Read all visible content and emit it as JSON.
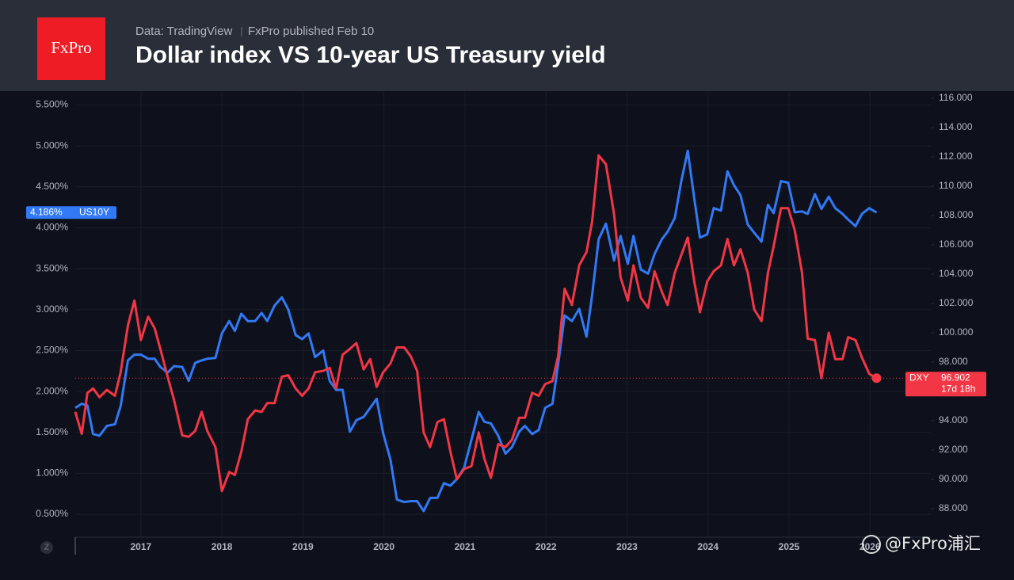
{
  "header": {
    "logo": "FxPro",
    "source": "Data: TradingView",
    "published": "FxPro published Feb 10"
  },
  "ui": {
    "scale_button": "Z"
  },
  "watermark": "@FxPro浦汇",
  "chart_data": {
    "type": "line",
    "title": "Dollar index VS 10-year US Treasury yield",
    "x": [
      2016.19,
      2016.27,
      2016.34,
      2016.41,
      2016.49,
      2016.58,
      2016.68,
      2016.75,
      2016.84,
      2016.92,
      2017.0,
      2017.09,
      2017.17,
      2017.24,
      2017.33,
      2017.41,
      2017.51,
      2017.59,
      2017.67,
      2017.75,
      2017.82,
      2017.92,
      2018.0,
      2018.09,
      2018.16,
      2018.24,
      2018.32,
      2018.41,
      2018.49,
      2018.56,
      2018.65,
      2018.74,
      2018.82,
      2018.91,
      2018.99,
      2019.07,
      2019.15,
      2019.25,
      2019.33,
      2019.41,
      2019.49,
      2019.58,
      2019.66,
      2019.75,
      2019.83,
      2019.91,
      2019.99,
      2020.08,
      2020.16,
      2020.25,
      2020.33,
      2020.41,
      2020.49,
      2020.57,
      2020.66,
      2020.74,
      2020.82,
      2020.9,
      2020.99,
      2021.08,
      2021.17,
      2021.24,
      2021.32,
      2021.41,
      2021.5,
      2021.58,
      2021.67,
      2021.74,
      2021.83,
      2021.91,
      2021.99,
      2022.08,
      2022.15,
      2022.23,
      2022.32,
      2022.41,
      2022.5,
      2022.57,
      2022.65,
      2022.74,
      2022.84,
      2022.92,
      2023.01,
      2023.08,
      2023.17,
      2023.26,
      2023.34,
      2023.43,
      2023.5,
      2023.59,
      2023.67,
      2023.75,
      2023.83,
      2023.9,
      2023.99,
      2024.07,
      2024.16,
      2024.24,
      2024.32,
      2024.4,
      2024.49,
      2024.57,
      2024.66,
      2024.74,
      2024.81,
      2024.9,
      2024.99,
      2025.07,
      2025.16,
      2025.23,
      2025.32,
      2025.4,
      2025.49,
      2025.57,
      2025.66,
      2025.73,
      2025.82,
      2025.9,
      2025.99,
      2026.08
    ],
    "xlim": [
      2016.19,
      2026.75
    ],
    "xticks": [
      2017,
      2018,
      2019,
      2020,
      2021,
      2022,
      2023,
      2024,
      2025,
      2026
    ],
    "ylim": [
      0.22,
      5.65
    ],
    "yticks": [
      {
        "value": 0.5,
        "label": "0.500%"
      },
      {
        "value": 1.0,
        "label": "1.000%"
      },
      {
        "value": 1.5,
        "label": "1.500%"
      },
      {
        "value": 2.0,
        "label": "2.000%"
      },
      {
        "value": 2.5,
        "label": "2.500%"
      },
      {
        "value": 3.0,
        "label": "3.000%"
      },
      {
        "value": 3.5,
        "label": "3.500%"
      },
      {
        "value": 4.0,
        "label": "4.000%"
      },
      {
        "value": 4.5,
        "label": "4.500%"
      },
      {
        "value": 5.0,
        "label": "5.000%"
      },
      {
        "value": 5.5,
        "label": "5.500%"
      }
    ],
    "y2lim": [
      86.05,
      116.38
    ],
    "y2ticks": [
      {
        "value": 88,
        "label": "88.000"
      },
      {
        "value": 90,
        "label": "90.000"
      },
      {
        "value": 92,
        "label": "92.000"
      },
      {
        "value": 94,
        "label": "94.000"
      },
      {
        "value": 96,
        "label": "96.000"
      },
      {
        "value": 98,
        "label": "98.000"
      },
      {
        "value": 100,
        "label": "100.000"
      },
      {
        "value": 102,
        "label": "102.000"
      },
      {
        "value": 104,
        "label": "104.000"
      },
      {
        "value": 106,
        "label": "106.000"
      },
      {
        "value": 108,
        "label": "108.000"
      },
      {
        "value": 110,
        "label": "110.000"
      },
      {
        "value": 112,
        "label": "112.000"
      },
      {
        "value": 114,
        "label": "114.000"
      },
      {
        "value": 116,
        "label": "116.000"
      }
    ],
    "grid": true,
    "series": [
      {
        "name": "US10Y",
        "color": "#3179f5",
        "price_label": "4.186%",
        "values": [
          1.8,
          1.85,
          1.83,
          1.48,
          1.46,
          1.58,
          1.6,
          1.82,
          2.38,
          2.45,
          2.45,
          2.4,
          2.4,
          2.3,
          2.23,
          2.31,
          2.3,
          2.13,
          2.35,
          2.38,
          2.4,
          2.41,
          2.71,
          2.86,
          2.74,
          2.95,
          2.86,
          2.86,
          2.96,
          2.86,
          3.05,
          3.15,
          3.0,
          2.69,
          2.64,
          2.71,
          2.42,
          2.5,
          2.13,
          2.02,
          2.02,
          1.51,
          1.65,
          1.69,
          1.8,
          1.91,
          1.49,
          1.17,
          0.68,
          0.65,
          0.66,
          0.66,
          0.54,
          0.7,
          0.7,
          0.88,
          0.85,
          0.93,
          1.07,
          1.41,
          1.75,
          1.63,
          1.61,
          1.46,
          1.24,
          1.32,
          1.51,
          1.58,
          1.48,
          1.53,
          1.8,
          1.85,
          2.33,
          2.93,
          2.86,
          3.01,
          2.67,
          3.18,
          3.86,
          4.05,
          3.6,
          3.9,
          3.56,
          3.9,
          3.49,
          3.44,
          3.68,
          3.86,
          3.95,
          4.12,
          4.57,
          4.94,
          4.36,
          3.88,
          3.92,
          4.24,
          4.21,
          4.69,
          4.52,
          4.4,
          4.04,
          3.94,
          3.83,
          4.28,
          4.18,
          4.57,
          4.55,
          4.19,
          4.2,
          4.17,
          4.41,
          4.23,
          4.38,
          4.24,
          4.17,
          4.1,
          4.02,
          4.17,
          4.24,
          4.186
        ]
      },
      {
        "name": "DXY",
        "color": "#f23645",
        "axis": "y2",
        "countdown": "17d 18h",
        "values": [
          94.6,
          93.1,
          95.9,
          96.2,
          95.6,
          96.1,
          95.7,
          97.3,
          100.5,
          102.2,
          99.5,
          101.1,
          100.3,
          98.9,
          97.0,
          95.4,
          93.0,
          92.9,
          93.3,
          94.6,
          93.3,
          92.2,
          89.2,
          90.5,
          90.3,
          91.9,
          94.1,
          94.7,
          94.6,
          95.2,
          95.2,
          97.0,
          97.1,
          96.2,
          95.7,
          96.2,
          97.3,
          97.4,
          97.6,
          96.2,
          98.5,
          98.9,
          99.3,
          97.5,
          98.2,
          96.3,
          97.3,
          97.9,
          99.0,
          99.0,
          98.4,
          97.4,
          93.2,
          92.2,
          93.9,
          94.1,
          91.9,
          90.0,
          90.7,
          90.9,
          93.2,
          91.4,
          90.1,
          92.4,
          92.2,
          92.7,
          94.2,
          94.2,
          95.9,
          95.7,
          96.5,
          96.7,
          98.4,
          103.0,
          101.9,
          104.6,
          105.5,
          107.6,
          112.1,
          111.5,
          108.1,
          103.8,
          102.2,
          104.6,
          102.4,
          101.7,
          104.2,
          102.8,
          101.9,
          104.1,
          105.3,
          106.5,
          103.5,
          101.4,
          103.5,
          104.2,
          104.6,
          106.4,
          104.6,
          105.7,
          104.1,
          101.6,
          100.8,
          104.1,
          105.9,
          108.5,
          108.5,
          107.0,
          104.1,
          99.6,
          99.5,
          96.9,
          100.0,
          98.2,
          98.2,
          99.7,
          99.5,
          98.3,
          97.2,
          96.902
        ]
      }
    ]
  }
}
